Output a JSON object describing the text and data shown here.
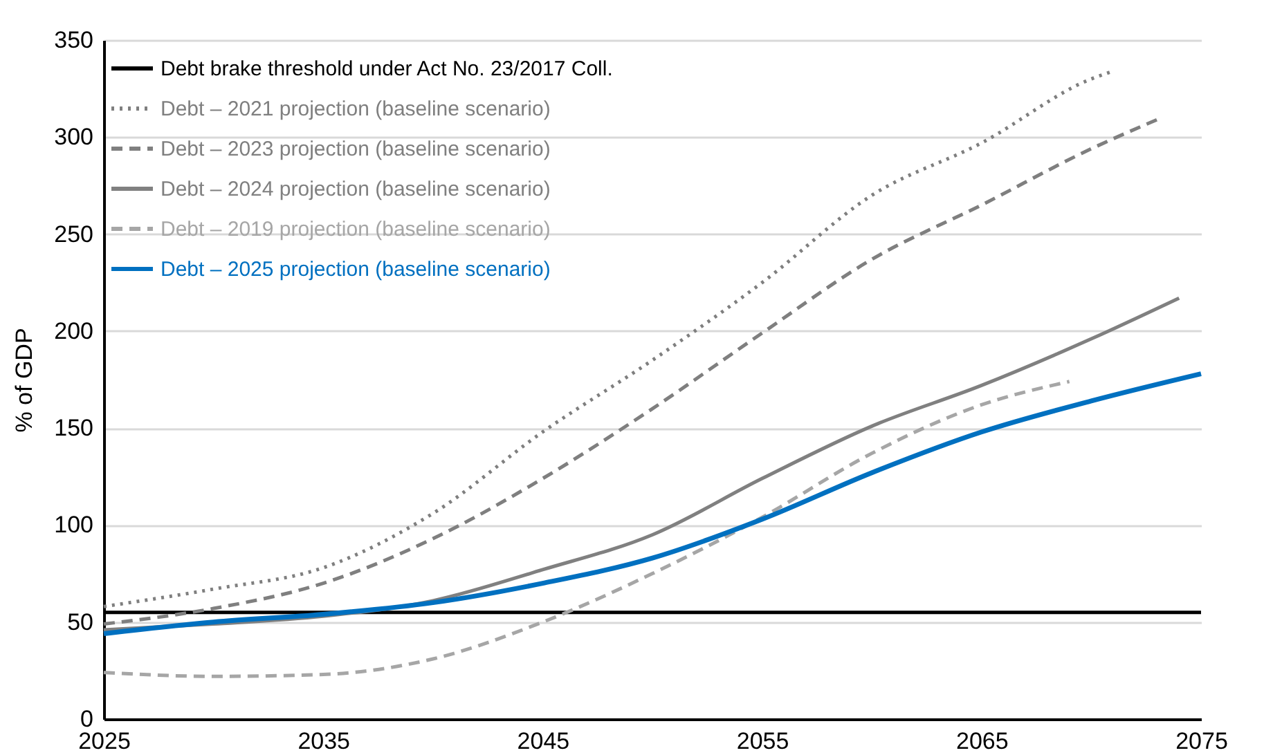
{
  "chart_data": {
    "type": "line",
    "ylabel": "% of GDP",
    "xlim": [
      2025,
      2075
    ],
    "xticks": [
      2025,
      2035,
      2045,
      2055,
      2065,
      2075
    ],
    "ylim": [
      0,
      350
    ],
    "yticks": [
      0,
      50,
      100,
      150,
      200,
      250,
      300,
      350
    ],
    "grid": "y",
    "legend": "top left",
    "marker": "none",
    "series": [
      {
        "name": "Debt brake threshold under Act No. 23/2017 Coll.",
        "color": "#000000",
        "line_style": "solid",
        "x": [
          2025,
          2075
        ],
        "values": [
          55,
          55
        ]
      },
      {
        "name": "Debt – 2021 projection (baseline scenario)",
        "color": "#7f7f7f",
        "line_style": "dotted",
        "x": [
          2025,
          2030,
          2035,
          2040,
          2045,
          2050,
          2055,
          2060,
          2065,
          2070,
          2071
        ],
        "values": [
          58,
          67,
          78,
          106,
          148,
          185,
          225,
          270,
          297,
          330,
          334
        ]
      },
      {
        "name": "Debt – 2023 projection (baseline scenario)",
        "color": "#7f7f7f",
        "line_style": "dashed",
        "x": [
          2025,
          2030,
          2035,
          2040,
          2045,
          2050,
          2055,
          2060,
          2065,
          2070,
          2073
        ],
        "values": [
          49,
          57,
          70,
          93,
          124,
          160,
          199,
          237,
          265,
          294,
          309
        ]
      },
      {
        "name": "Debt – 2024 projection (baseline scenario)",
        "color": "#808080",
        "line_style": "solid",
        "x": [
          2025,
          2030,
          2035,
          2040,
          2045,
          2050,
          2055,
          2060,
          2065,
          2070,
          2074
        ],
        "values": [
          46,
          49,
          53,
          61,
          77,
          95,
          124,
          151,
          172,
          196,
          217
        ]
      },
      {
        "name": "Debt – 2019 projection (baseline scenario)",
        "color": "#a6a6a6",
        "line_style": "dashed",
        "x": [
          2025,
          2030,
          2035,
          2040,
          2045,
          2050,
          2055,
          2060,
          2065,
          2069
        ],
        "values": [
          24,
          22,
          23,
          31,
          50,
          75,
          104,
          137,
          162,
          174
        ]
      },
      {
        "name": "Debt – 2025 projection (baseline scenario)",
        "color": "#0070c0",
        "line_style": "solid",
        "x": [
          2025,
          2030,
          2035,
          2040,
          2045,
          2050,
          2055,
          2060,
          2065,
          2070,
          2075
        ],
        "values": [
          44,
          50,
          54,
          60,
          70,
          83,
          103,
          127,
          148,
          164,
          178
        ]
      }
    ]
  }
}
